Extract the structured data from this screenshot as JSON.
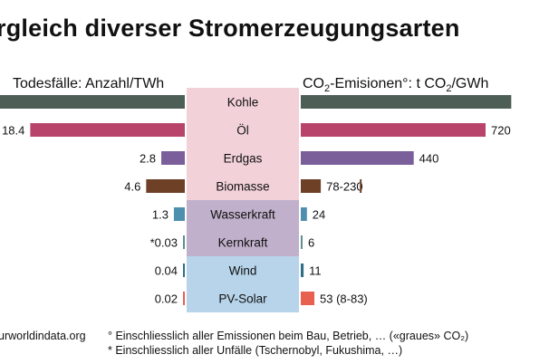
{
  "title": "rgleich diverser Stromerzeugungsarten",
  "left_header": "Todesfälle: Anzahl/TWh",
  "right_header": {
    "pre": "CO",
    "sub": "2",
    "post": "-Emisionen°: t CO",
    "sub2": "2",
    "post2": "/GWh"
  },
  "footer": {
    "source": "urworldindata.org",
    "note1": "° Einschliesslich aller Emissionen beim Bau, Betrieb, … («graues» CO₂)",
    "note2": "* Einschliesslich aller Unfälle (Tschernobyl, Fukushima, …)"
  },
  "colors": {
    "fossil": "#f2d1d9",
    "renew_mid": "#c1b0cb",
    "renew_low": "#b7d4ea",
    "text": "#111111"
  },
  "chart_data": [
    {
      "type": "bar",
      "orientation": "horizontal-left",
      "title": "Todesfälle: Anzahl/TWh",
      "categories": [
        "Kohle",
        "Öl",
        "Erdgas",
        "Biomasse",
        "Wasserkraft",
        "Kernkraft",
        "Wind",
        "PV-Solar"
      ],
      "values": [
        24.6,
        18.4,
        2.8,
        4.6,
        1.3,
        0.03,
        0.04,
        0.02
      ],
      "labels": [
        "",
        "18.4",
        "2.8",
        "4.6",
        "1.3",
        "*0.03",
        "0.04",
        "0.02"
      ],
      "colors": [
        "#4d5e57",
        "#b8446c",
        "#7a5f9a",
        "#6e4026",
        "#4f8fae",
        "#5f8f8f",
        "#2f6f87",
        "#e76050"
      ]
    },
    {
      "type": "bar",
      "orientation": "horizontal-right",
      "title": "CO2-Emisionen°: t CO2/GWh",
      "categories": [
        "Kohle",
        "Öl",
        "Erdgas",
        "Biomasse",
        "Wasserkraft",
        "Kernkraft",
        "Wind",
        "PV-Solar"
      ],
      "values": [
        820,
        720,
        440,
        78,
        24,
        6,
        11,
        53
      ],
      "labels": [
        "",
        "720",
        "440",
        "78-230",
        "24",
        "6",
        "11",
        "53 (8-83)"
      ],
      "colors": [
        "#4d5e57",
        "#b8446c",
        "#7a5f9a",
        "#6e4026",
        "#4f8fae",
        "#5f8f8f",
        "#2f6f87",
        "#e76050"
      ]
    }
  ]
}
